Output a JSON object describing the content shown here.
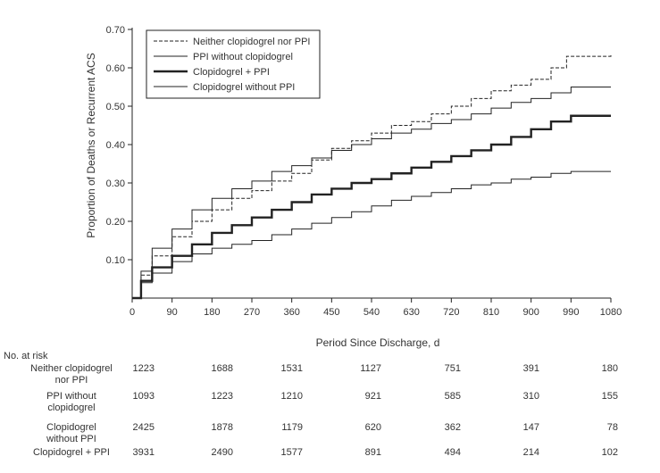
{
  "chart_data": {
    "type": "line",
    "subtype": "kaplan-meier-step",
    "xlabel": "Period Since Discharge, d",
    "ylabel": "Proportion of Deaths or Recurrent ACS",
    "xlim": [
      0,
      1080
    ],
    "ylim": [
      0,
      0.7
    ],
    "xticks": [
      0,
      90,
      180,
      270,
      360,
      450,
      540,
      630,
      720,
      810,
      900,
      990,
      1080
    ],
    "xtick_labels": [
      "0",
      "90",
      "180",
      "270",
      "360",
      "450",
      "540",
      "630",
      "720",
      "810",
      "900",
      "990",
      "1080"
    ],
    "yticks": [
      0.1,
      0.2,
      0.3,
      0.4,
      0.5,
      0.6,
      0.7
    ],
    "ytick_labels": [
      "0.10",
      "0.20",
      "0.30",
      "0.40",
      "0.50",
      "0.60",
      "0.70"
    ],
    "grid": false,
    "legend_position": "top-left",
    "series": [
      {
        "name": "Neither clopidogrel nor PPI",
        "style": "dashed",
        "x": [
          0,
          20,
          45,
          90,
          135,
          180,
          225,
          270,
          315,
          360,
          405,
          450,
          495,
          540,
          585,
          630,
          675,
          720,
          765,
          810,
          855,
          900,
          945,
          980,
          1080
        ],
        "y": [
          0,
          0.06,
          0.11,
          0.16,
          0.2,
          0.23,
          0.26,
          0.28,
          0.305,
          0.325,
          0.36,
          0.39,
          0.41,
          0.43,
          0.45,
          0.46,
          0.48,
          0.5,
          0.52,
          0.54,
          0.555,
          0.57,
          0.6,
          0.63,
          0.635
        ]
      },
      {
        "name": "PPI without clopidogrel",
        "style": "thin-solid",
        "x": [
          0,
          20,
          45,
          90,
          135,
          180,
          225,
          270,
          315,
          360,
          405,
          450,
          495,
          540,
          585,
          630,
          675,
          720,
          765,
          810,
          855,
          900,
          945,
          990,
          1080
        ],
        "y": [
          0,
          0.07,
          0.13,
          0.18,
          0.23,
          0.26,
          0.285,
          0.305,
          0.33,
          0.345,
          0.365,
          0.385,
          0.4,
          0.415,
          0.43,
          0.44,
          0.455,
          0.465,
          0.48,
          0.495,
          0.51,
          0.52,
          0.535,
          0.55,
          0.55
        ]
      },
      {
        "name": "Clopidogrel + PPI",
        "style": "thick-solid",
        "x": [
          0,
          20,
          45,
          90,
          135,
          180,
          225,
          270,
          315,
          360,
          405,
          450,
          495,
          540,
          585,
          630,
          675,
          720,
          765,
          810,
          855,
          900,
          945,
          990,
          1080
        ],
        "y": [
          0,
          0.045,
          0.08,
          0.11,
          0.14,
          0.17,
          0.19,
          0.21,
          0.23,
          0.25,
          0.27,
          0.285,
          0.3,
          0.31,
          0.325,
          0.34,
          0.355,
          0.37,
          0.385,
          0.4,
          0.42,
          0.44,
          0.46,
          0.475,
          0.475
        ]
      },
      {
        "name": "Clopidogrel without PPI",
        "style": "thin-solid",
        "x": [
          0,
          20,
          45,
          90,
          135,
          180,
          225,
          270,
          315,
          360,
          405,
          450,
          495,
          540,
          585,
          630,
          675,
          720,
          765,
          810,
          855,
          900,
          945,
          990,
          1080
        ],
        "y": [
          0,
          0.04,
          0.065,
          0.095,
          0.115,
          0.13,
          0.14,
          0.15,
          0.165,
          0.18,
          0.195,
          0.21,
          0.225,
          0.24,
          0.255,
          0.265,
          0.275,
          0.285,
          0.295,
          0.3,
          0.31,
          0.315,
          0.325,
          0.33,
          0.33
        ]
      }
    ],
    "risk_table": {
      "header": "No. at risk",
      "rows": [
        {
          "label_lines": [
            "Neither clopidogrel",
            "nor PPI"
          ],
          "values": [
            "1223",
            "1688",
            "1531",
            "1127",
            "751",
            "391",
            "180"
          ]
        },
        {
          "label_lines": [
            "PPI without",
            "clopidogrel"
          ],
          "values": [
            "1093",
            "1223",
            "1210",
            "921",
            "585",
            "310",
            "155"
          ]
        },
        {
          "label_lines": [
            "Clopidogrel",
            "without PPI"
          ],
          "values": [
            "2425",
            "1878",
            "1179",
            "620",
            "362",
            "147",
            "78"
          ]
        },
        {
          "label_lines": [
            "Clopidogrel + PPI"
          ],
          "values": [
            "3931",
            "2490",
            "1577",
            "891",
            "494",
            "214",
            "102"
          ]
        }
      ]
    }
  },
  "colors": {
    "line": "#222222",
    "text": "#333333"
  }
}
